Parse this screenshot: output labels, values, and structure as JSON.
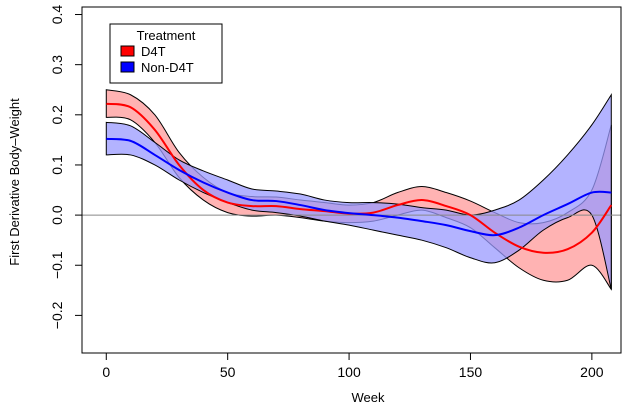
{
  "chart_data": {
    "type": "line",
    "xlabel": "Week",
    "ylabel": "First Derivative Body–Weight",
    "xlim": [
      -10,
      212
    ],
    "ylim": [
      -0.275,
      0.415
    ],
    "x_ticks": [
      0,
      50,
      100,
      150,
      200
    ],
    "y_ticks": [
      -0.2,
      -0.1,
      0.0,
      0.1,
      0.2,
      0.3,
      0.4
    ],
    "x_tick_labels": [
      "0",
      "50",
      "100",
      "150",
      "200"
    ],
    "y_tick_labels": [
      "−0.2",
      "−0.1",
      "0.0",
      "0.1",
      "0.2",
      "0.3",
      "0.4"
    ],
    "reference_line_y": 0,
    "grid": false,
    "legend": {
      "title": "Treatment",
      "placement": "top-left"
    },
    "series": [
      {
        "name": "D4T",
        "color": "#ff0000",
        "band_color": "#ff9a9a",
        "x": [
          0,
          10,
          20,
          30,
          40,
          50,
          60,
          70,
          80,
          90,
          100,
          110,
          120,
          130,
          140,
          150,
          160,
          170,
          180,
          190,
          200,
          208
        ],
        "mean": [
          0.222,
          0.215,
          0.17,
          0.1,
          0.05,
          0.025,
          0.018,
          0.018,
          0.012,
          0.008,
          0.003,
          0.005,
          0.02,
          0.03,
          0.018,
          0.0,
          -0.035,
          -0.063,
          -0.075,
          -0.068,
          -0.035,
          0.02
        ],
        "lower": [
          0.195,
          0.19,
          0.145,
          0.075,
          0.03,
          0.005,
          -0.002,
          0.0,
          -0.005,
          -0.012,
          -0.015,
          -0.012,
          0.0,
          0.01,
          -0.005,
          -0.025,
          -0.065,
          -0.105,
          -0.13,
          -0.13,
          -0.1,
          -0.148
        ],
        "upper": [
          0.25,
          0.24,
          0.2,
          0.125,
          0.075,
          0.045,
          0.037,
          0.036,
          0.03,
          0.025,
          0.02,
          0.025,
          0.045,
          0.057,
          0.045,
          0.028,
          0.005,
          -0.015,
          -0.015,
          0.005,
          0.05,
          0.18
        ]
      },
      {
        "name": "Non-D4T",
        "color": "#0000ff",
        "band_color": "#9a9aff",
        "x": [
          0,
          10,
          20,
          30,
          40,
          50,
          60,
          70,
          80,
          90,
          100,
          110,
          120,
          130,
          140,
          150,
          160,
          170,
          180,
          190,
          200,
          208
        ],
        "mean": [
          0.152,
          0.148,
          0.12,
          0.09,
          0.065,
          0.045,
          0.03,
          0.028,
          0.02,
          0.01,
          0.004,
          0.0,
          -0.005,
          -0.012,
          -0.02,
          -0.032,
          -0.04,
          -0.025,
          0.0,
          0.022,
          0.045,
          0.045
        ],
        "lower": [
          0.12,
          0.12,
          0.1,
          0.07,
          0.045,
          0.025,
          0.01,
          0.005,
          -0.002,
          -0.012,
          -0.02,
          -0.03,
          -0.04,
          -0.05,
          -0.065,
          -0.085,
          -0.095,
          -0.07,
          -0.03,
          -0.005,
          0.0,
          -0.148
        ],
        "upper": [
          0.185,
          0.178,
          0.145,
          0.11,
          0.088,
          0.07,
          0.052,
          0.048,
          0.042,
          0.03,
          0.025,
          0.025,
          0.022,
          0.015,
          0.01,
          0.0,
          0.01,
          0.03,
          0.07,
          0.12,
          0.18,
          0.24
        ]
      }
    ]
  }
}
